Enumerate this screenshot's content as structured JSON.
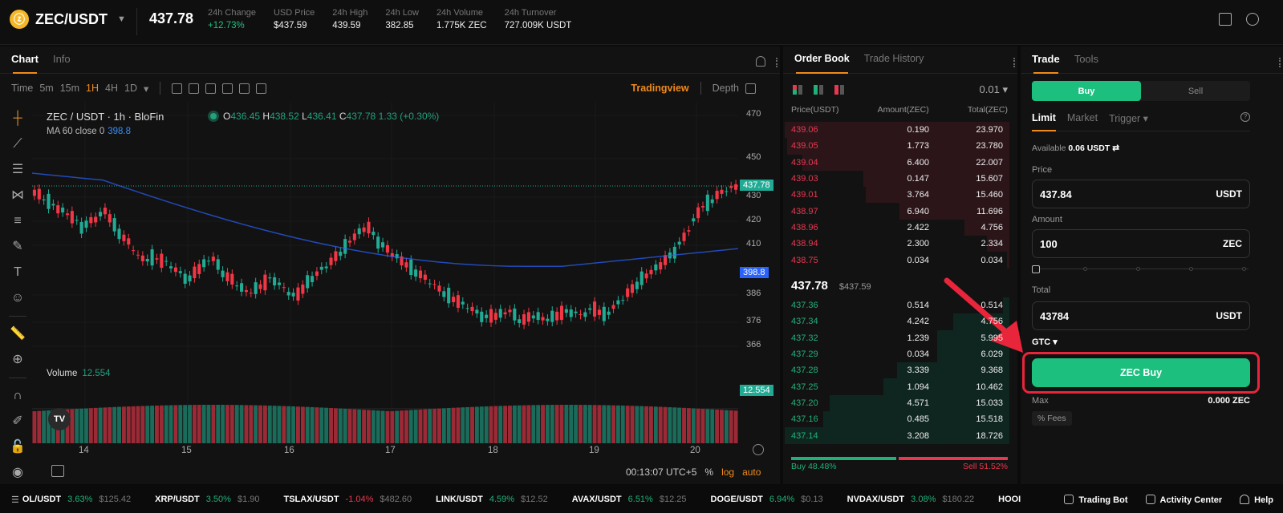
{
  "header": {
    "coin_icon": "zcash-coin-icon",
    "pair": "ZEC/USDT",
    "last_price": "437.78",
    "stats": [
      {
        "label": "24h Change",
        "value": "+12.73%",
        "tone": "up"
      },
      {
        "label": "USD Price",
        "value": "$437.59",
        "tone": ""
      },
      {
        "label": "24h High",
        "value": "439.59",
        "tone": ""
      },
      {
        "label": "24h Low",
        "value": "382.85",
        "tone": ""
      },
      {
        "label": "24h Volume",
        "value": "1.775K ZEC",
        "tone": ""
      },
      {
        "label": "24h Turnover",
        "value": "727.009K USDT",
        "tone": ""
      }
    ]
  },
  "chart_panel": {
    "tabs": [
      "Chart",
      "Info"
    ],
    "active_tab": "Chart",
    "intervals": [
      "Time",
      "5m",
      "15m",
      "1H",
      "4H",
      "1D"
    ],
    "active_interval": "1H",
    "view_modes": [
      "Tradingview",
      "Depth"
    ],
    "active_view": "Tradingview",
    "symbol_legend": "ZEC / USDT · 1h · BloFin",
    "ohlc": {
      "o": "436.45",
      "h": "438.52",
      "l": "436.41",
      "c": "437.78",
      "change": "1.33 (+0.30%)"
    },
    "ma_label": "MA 60 close 0",
    "ma_value": "398.8",
    "volume_label": "Volume",
    "volume_value": "12.554",
    "y_ticks": [
      "470",
      "450",
      "430",
      "420",
      "410",
      "386",
      "376",
      "366"
    ],
    "price_tag": "437.78",
    "ma_tag": "398.8",
    "volume_tag": "12.554",
    "x_ticks": [
      "14",
      "15",
      "16",
      "17",
      "18",
      "19",
      "20"
    ],
    "clock": "00:13:07 UTC+5",
    "scale_opts": [
      "%",
      "log",
      "auto"
    ],
    "colors": {
      "up": "#22ab94",
      "down": "#f23645",
      "ma": "#2962ff"
    }
  },
  "order_book": {
    "tabs": [
      "Order Book",
      "Trade History"
    ],
    "active_tab": "Order Book",
    "precision": "0.01",
    "columns": [
      "Price(USDT)",
      "Amount(ZEC)",
      "Total(ZEC)"
    ],
    "asks": [
      {
        "price": "439.06",
        "amount": "0.190",
        "total": "23.970",
        "depth": 100
      },
      {
        "price": "439.05",
        "amount": "1.773",
        "total": "23.780",
        "depth": 99
      },
      {
        "price": "439.04",
        "amount": "6.400",
        "total": "22.007",
        "depth": 92
      },
      {
        "price": "439.03",
        "amount": "0.147",
        "total": "15.607",
        "depth": 65
      },
      {
        "price": "439.01",
        "amount": "3.764",
        "total": "15.460",
        "depth": 64
      },
      {
        "price": "438.97",
        "amount": "6.940",
        "total": "11.696",
        "depth": 49
      },
      {
        "price": "438.96",
        "amount": "2.422",
        "total": "4.756",
        "depth": 20
      },
      {
        "price": "438.94",
        "amount": "2.300",
        "total": "2.334",
        "depth": 10
      },
      {
        "price": "438.75",
        "amount": "0.034",
        "total": "0.034",
        "depth": 1
      }
    ],
    "mid_price": "437.78",
    "mid_usd": "$437.59",
    "bids": [
      {
        "price": "437.36",
        "amount": "0.514",
        "total": "0.514",
        "depth": 3
      },
      {
        "price": "437.34",
        "amount": "4.242",
        "total": "4.756",
        "depth": 25
      },
      {
        "price": "437.32",
        "amount": "1.239",
        "total": "5.995",
        "depth": 32
      },
      {
        "price": "437.29",
        "amount": "0.034",
        "total": "6.029",
        "depth": 32
      },
      {
        "price": "437.28",
        "amount": "3.339",
        "total": "9.368",
        "depth": 50
      },
      {
        "price": "437.25",
        "amount": "1.094",
        "total": "10.462",
        "depth": 56
      },
      {
        "price": "437.20",
        "amount": "4.571",
        "total": "15.033",
        "depth": 80
      },
      {
        "price": "437.16",
        "amount": "0.485",
        "total": "15.518",
        "depth": 83
      },
      {
        "price": "437.14",
        "amount": "3.208",
        "total": "18.726",
        "depth": 100
      }
    ],
    "buy_ratio": "Buy 48.48%",
    "sell_ratio": "Sell 51.52%",
    "buy_pct": 48.48
  },
  "trade": {
    "tabs": [
      "Trade",
      "Tools"
    ],
    "active_tab": "Trade",
    "side_buy": "Buy",
    "side_sell": "Sell",
    "order_types": [
      "Limit",
      "Market",
      "Trigger"
    ],
    "active_type": "Limit",
    "available_label": "Available",
    "available_value": "0.06 USDT",
    "price_label": "Price",
    "price_value": "437.84",
    "price_unit": "USDT",
    "amount_label": "Amount",
    "amount_value": "100",
    "amount_unit": "ZEC",
    "total_label": "Total",
    "total_value": "43784",
    "total_unit": "USDT",
    "tif": "GTC",
    "submit_label": "ZEC Buy",
    "max_label": "Max",
    "max_value": "0.000 ZEC",
    "fees_label": "% Fees"
  },
  "ticker": [
    {
      "name": "OL/USDT",
      "change": "3.63%",
      "dir": "u",
      "price": "$125.42"
    },
    {
      "name": "XRP/USDT",
      "change": "3.50%",
      "dir": "u",
      "price": "$1.90"
    },
    {
      "name": "TSLAX/USDT",
      "change": "-1.04%",
      "dir": "d",
      "price": "$482.60"
    },
    {
      "name": "LINK/USDT",
      "change": "4.59%",
      "dir": "u",
      "price": "$12.52"
    },
    {
      "name": "AVAX/USDT",
      "change": "6.51%",
      "dir": "u",
      "price": "$12.25"
    },
    {
      "name": "DOGE/USDT",
      "change": "6.94%",
      "dir": "u",
      "price": "$0.13"
    },
    {
      "name": "NVDAX/USDT",
      "change": "3.08%",
      "dir": "u",
      "price": "$180.22"
    },
    {
      "name": "HOOI",
      "change": "",
      "dir": "u",
      "price": ""
    }
  ],
  "footer": {
    "trading_bot": "Trading Bot",
    "activity_center": "Activity Center",
    "help": "Help"
  }
}
